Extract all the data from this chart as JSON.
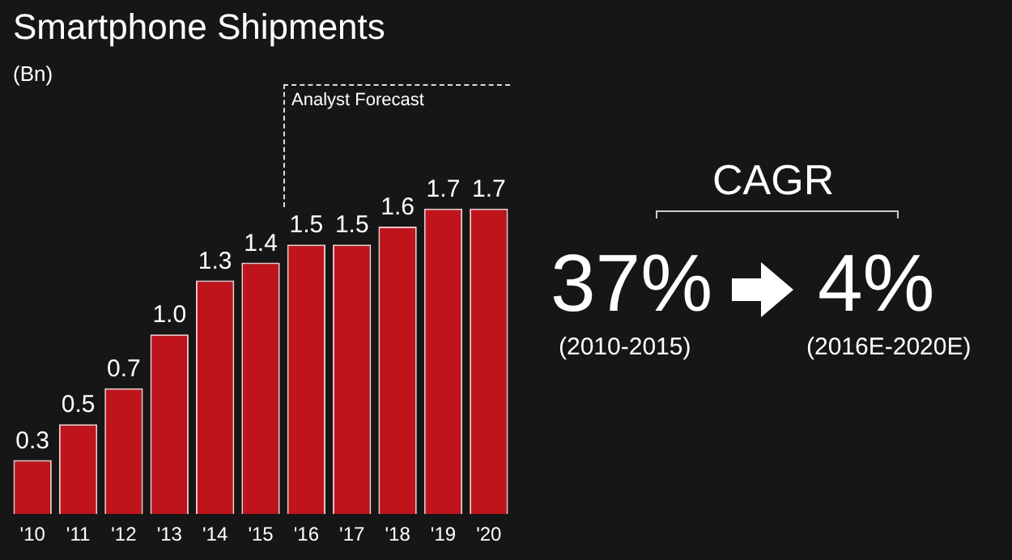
{
  "chart_data": {
    "type": "bar",
    "title": "Smartphone Shipments",
    "subtitle": "(Bn)",
    "categories": [
      "'10",
      "'11",
      "'12",
      "'13",
      "'14",
      "'15",
      "'16",
      "'17",
      "'18",
      "'19",
      "'20"
    ],
    "values": [
      0.3,
      0.5,
      0.7,
      1.0,
      1.3,
      1.4,
      1.5,
      1.5,
      1.6,
      1.7,
      1.7
    ],
    "value_labels": [
      "0.3",
      "0.5",
      "0.7",
      "1.0",
      "1.3",
      "1.4",
      "1.5",
      "1.5",
      "1.6",
      "1.7",
      "1.7"
    ],
    "color": "#c0141c",
    "legend": false,
    "annotations": [
      "Analyst Forecast",
      "CAGR",
      "37%",
      "4%",
      "(2010-2015)",
      "(2016E-2020E)"
    ]
  }
}
